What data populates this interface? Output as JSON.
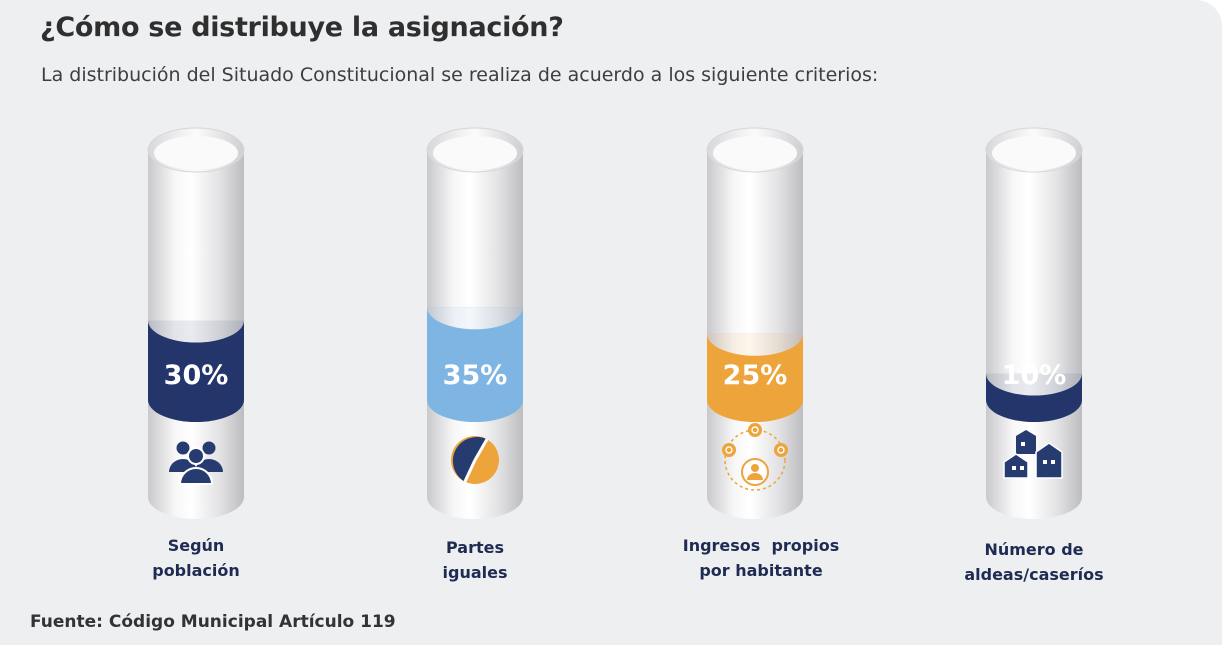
{
  "header": {
    "title": "¿Cómo se distribuye la asignación?",
    "subtitle": "La distribución del Situado Constitucional se realiza de acuerdo a los siguiente criterios:"
  },
  "footer": {
    "source": "Fuente: Código Municipal Artículo 119"
  },
  "colors": {
    "navy": "#23356b",
    "light_blue": "#7eb5e3",
    "orange": "#eda43a",
    "icon_navy": "#263c70"
  },
  "chart_data": {
    "type": "bar",
    "title": "¿Cómo se distribuye la asignación?",
    "categories": [
      "Según población",
      "Partes iguales",
      "Ingresos  propios por habitante",
      "Número de aldeas/caseríos"
    ],
    "category_lines": [
      [
        "Según",
        "población"
      ],
      [
        "Partes",
        "iguales"
      ],
      [
        "Ingresos  propios",
        "por habitante"
      ],
      [
        "Número de",
        "aldeas/caseríos"
      ]
    ],
    "values": [
      30,
      35,
      25,
      10
    ],
    "value_labels": [
      "30%",
      "35%",
      "25%",
      "10%"
    ],
    "bar_colors": [
      "#23356b",
      "#7eb5e3",
      "#eda43a",
      "#23356b"
    ],
    "icons": [
      "people-icon",
      "pie-chart-icon",
      "income-network-icon",
      "houses-icon"
    ],
    "unit": "%",
    "ylim": [
      0,
      100
    ],
    "xlabel": "",
    "ylabel": ""
  }
}
